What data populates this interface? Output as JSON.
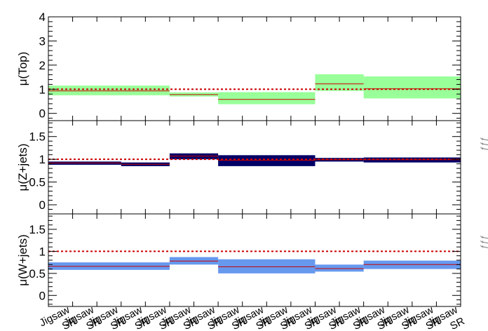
{
  "chart_data": [
    {
      "type": "bar",
      "ylabel": "μ(Top)",
      "ylim": [
        -0.3,
        4
      ],
      "yticks": [
        0,
        1,
        2,
        3,
        4
      ],
      "band_color": "#99ff99",
      "central_color": "#cc0000",
      "reference_line": 1,
      "bins": [
        {
          "x0": 0,
          "x1": 5,
          "value": 0.93,
          "low": 0.75,
          "high": 1.15
        },
        {
          "x0": 5,
          "x1": 7,
          "value": 0.78,
          "low": 0.7,
          "high": 0.87
        },
        {
          "x0": 7,
          "x1": 11,
          "value": 0.58,
          "low": 0.38,
          "high": 0.88
        },
        {
          "x0": 11,
          "x1": 13,
          "value": 1.22,
          "low": 0.93,
          "high": 1.62
        },
        {
          "x0": 13,
          "x1": 17,
          "value": 1.02,
          "low": 0.62,
          "high": 1.53
        }
      ]
    },
    {
      "type": "bar",
      "ylabel": "μ(Z+jets)",
      "ylim": [
        -0.2,
        1.85
      ],
      "yticks": [
        0,
        0.5,
        1,
        1.5
      ],
      "band_color": "#000066",
      "central_color": "#cc0000",
      "reference_line": 1,
      "bins": [
        {
          "x0": 0,
          "x1": 3,
          "value": 0.92,
          "low": 0.88,
          "high": 0.95
        },
        {
          "x0": 3,
          "x1": 5,
          "value": 0.89,
          "low": 0.85,
          "high": 0.93
        },
        {
          "x0": 5,
          "x1": 7,
          "value": 1.07,
          "low": 1.0,
          "high": 1.13
        },
        {
          "x0": 7,
          "x1": 11,
          "value": 0.98,
          "low": 0.85,
          "high": 1.09
        },
        {
          "x0": 11,
          "x1": 13,
          "value": 0.99,
          "low": 0.95,
          "high": 1.03
        },
        {
          "x0": 13,
          "x1": 17,
          "value": 0.99,
          "low": 0.93,
          "high": 1.04
        }
      ]
    },
    {
      "type": "bar",
      "ylabel": "μ(W+jets)",
      "ylim": [
        -0.25,
        1.85
      ],
      "yticks": [
        0,
        0.5,
        1,
        1.5
      ],
      "band_color": "#6699ee",
      "central_color": "#cc0000",
      "reference_line": 1,
      "bins": [
        {
          "x0": 0,
          "x1": 5,
          "value": 0.66,
          "low": 0.58,
          "high": 0.75
        },
        {
          "x0": 5,
          "x1": 7,
          "value": 0.78,
          "low": 0.7,
          "high": 0.87
        },
        {
          "x0": 7,
          "x1": 11,
          "value": 0.65,
          "low": 0.5,
          "high": 0.82
        },
        {
          "x0": 11,
          "x1": 13,
          "value": 0.61,
          "low": 0.54,
          "high": 0.7
        },
        {
          "x0": 13,
          "x1": 17,
          "value": 0.7,
          "low": 0.6,
          "high": 0.79
        }
      ]
    }
  ],
  "x_bins": {
    "count": 17,
    "labels": [
      "Jigsaw",
      "Jigsaw",
      "Jigsaw",
      "Jigsaw",
      "Jigsaw",
      "Jigsaw",
      "Jigsaw",
      "Jigsaw",
      "Jigsaw",
      "Jigsaw",
      "Jigsaw",
      "Jigsaw",
      "Jigsaw",
      "Jigsaw",
      "Jigsaw",
      "Jigsaw",
      "Jigsaw"
    ],
    "sublabels": [
      "SR",
      "SR",
      "SR",
      "SR",
      "SR",
      "SR",
      "SR",
      "SR",
      "SR",
      "SR",
      "SR",
      "SR",
      "SR",
      "SR",
      "SR",
      "SR",
      "SR"
    ]
  },
  "side_glyphs": [
    "ƒƒƒ",
    "ƒƒƒ"
  ]
}
